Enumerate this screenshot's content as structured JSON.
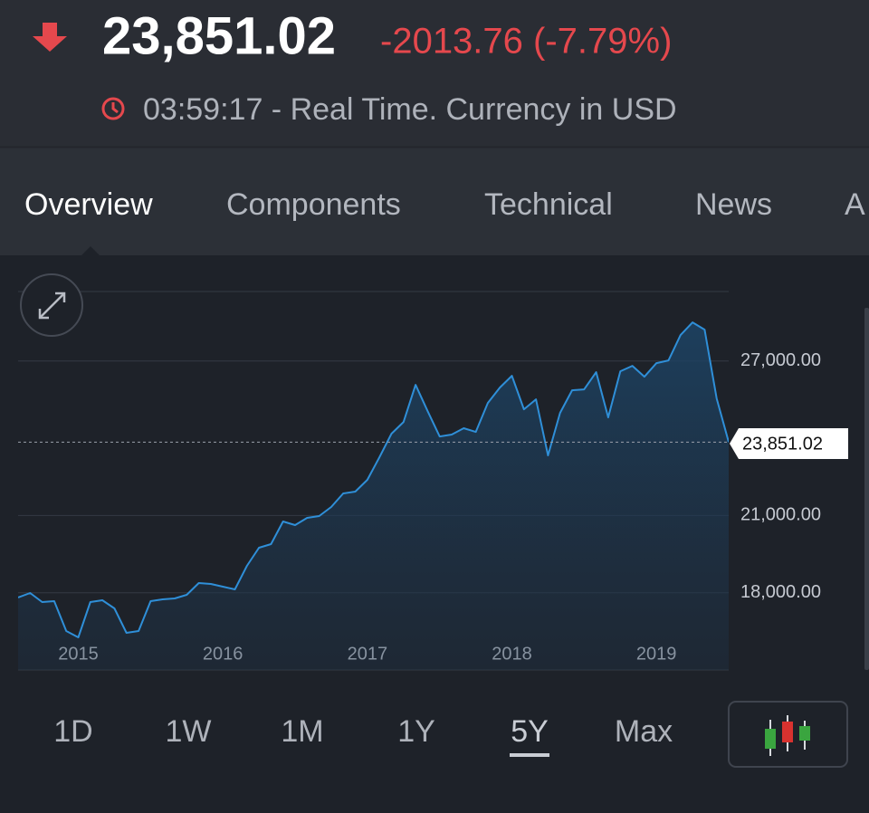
{
  "header": {
    "price": "23,851.02",
    "change": "-2013.76 (-7.79%)",
    "time_note": "03:59:17 - Real Time. Currency in USD"
  },
  "tabs": [
    "Overview",
    "Components",
    "Technical",
    "News",
    "A"
  ],
  "chart_data": {
    "type": "area",
    "values": [
      17813,
      17989,
      17637,
      17672,
      16512,
      16266,
      17637,
      17707,
      17391,
      16442,
      16512,
      17672,
      17742,
      17778,
      17918,
      18375,
      18340,
      18235,
      18129,
      19043,
      19747,
      19887,
      20766,
      20626,
      20907,
      20977,
      21329,
      21856,
      21927,
      22384,
      23263,
      24177,
      24634,
      26075,
      25056,
      24071,
      24142,
      24388,
      24247,
      25372,
      25970,
      26427,
      25126,
      25513,
      23333,
      24985,
      25864,
      25900,
      26568,
      24810,
      26603,
      26814,
      26392,
      26919,
      27025,
      28009,
      28501,
      28220,
      25548,
      23851.02
    ],
    "xlim": [
      0,
      59
    ],
    "xticks": [
      {
        "value": 5,
        "label": "2015"
      },
      {
        "value": 17,
        "label": "2016"
      },
      {
        "value": 29,
        "label": "2017"
      },
      {
        "value": 41,
        "label": "2018"
      },
      {
        "value": 53,
        "label": "2019"
      }
    ],
    "ylim": [
      15000,
      29700
    ],
    "yticks": [
      {
        "value": 18000,
        "label": "18,000.00"
      },
      {
        "value": 21000,
        "label": "21,000.00"
      },
      {
        "value": 27000,
        "label": "27,000.00"
      }
    ],
    "color": "#2f8fd8",
    "grid": true
  },
  "ranges": [
    "1D",
    "1W",
    "1M",
    "1Y",
    "5Y",
    "Max"
  ],
  "selected_range_index": 4
}
